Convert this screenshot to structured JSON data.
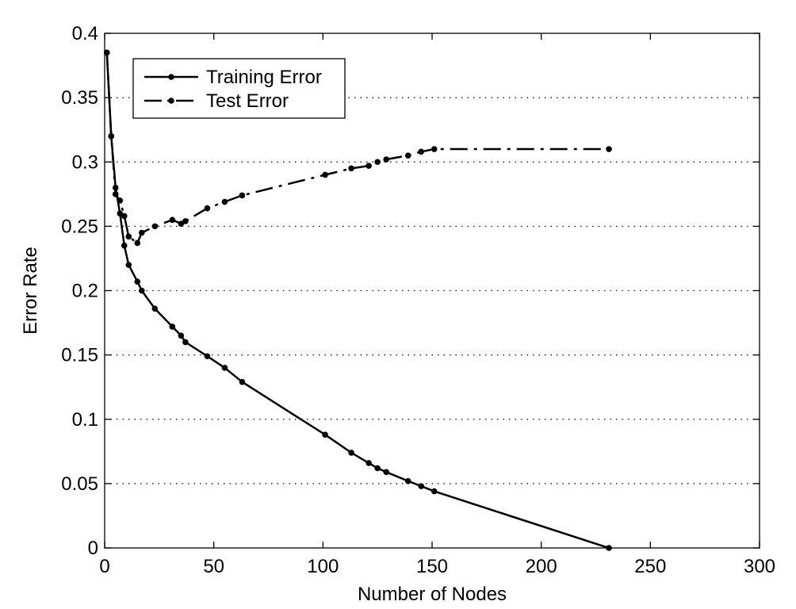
{
  "chart_data": {
    "type": "line",
    "title": "",
    "xlabel": "Number of Nodes",
    "ylabel": "Error Rate",
    "xlim": [
      0,
      300
    ],
    "ylim": [
      0,
      0.4
    ],
    "xticks": [
      0,
      50,
      100,
      150,
      200,
      250,
      300
    ],
    "yticks": [
      0,
      0.05,
      0.1,
      0.15,
      0.2,
      0.25,
      0.3,
      0.35,
      0.4
    ],
    "xtick_labels": [
      "0",
      "50",
      "100",
      "150",
      "200",
      "250",
      "300"
    ],
    "ytick_labels": [
      "0",
      "0.05",
      "0.1",
      "0.15",
      "0.2",
      "0.25",
      "0.3",
      "0.35",
      "0.4"
    ],
    "grid": "horizontal-dotted",
    "legend_position": "top-left",
    "series": [
      {
        "name": "Training Error",
        "style": "solid",
        "color": "#000000",
        "x": [
          1,
          3,
          5,
          7,
          9,
          11,
          15,
          17,
          23,
          31,
          35,
          37,
          47,
          55,
          63,
          101,
          113,
          121,
          125,
          129,
          139,
          145,
          151,
          231
        ],
        "y": [
          0.385,
          0.32,
          0.28,
          0.26,
          0.235,
          0.22,
          0.207,
          0.2,
          0.186,
          0.172,
          0.165,
          0.16,
          0.149,
          0.14,
          0.129,
          0.088,
          0.074,
          0.066,
          0.062,
          0.059,
          0.052,
          0.048,
          0.044,
          0.0
        ]
      },
      {
        "name": "Test Error",
        "style": "dash-dot",
        "color": "#000000",
        "x": [
          1,
          3,
          5,
          7,
          9,
          11,
          15,
          17,
          23,
          31,
          35,
          37,
          47,
          55,
          63,
          101,
          113,
          121,
          125,
          129,
          139,
          145,
          151,
          231
        ],
        "y": [
          0.385,
          0.32,
          0.275,
          0.27,
          0.258,
          0.242,
          0.237,
          0.245,
          0.25,
          0.255,
          0.252,
          0.254,
          0.264,
          0.269,
          0.274,
          0.29,
          0.295,
          0.297,
          0.3,
          0.302,
          0.305,
          0.308,
          0.31,
          0.31
        ]
      }
    ]
  }
}
